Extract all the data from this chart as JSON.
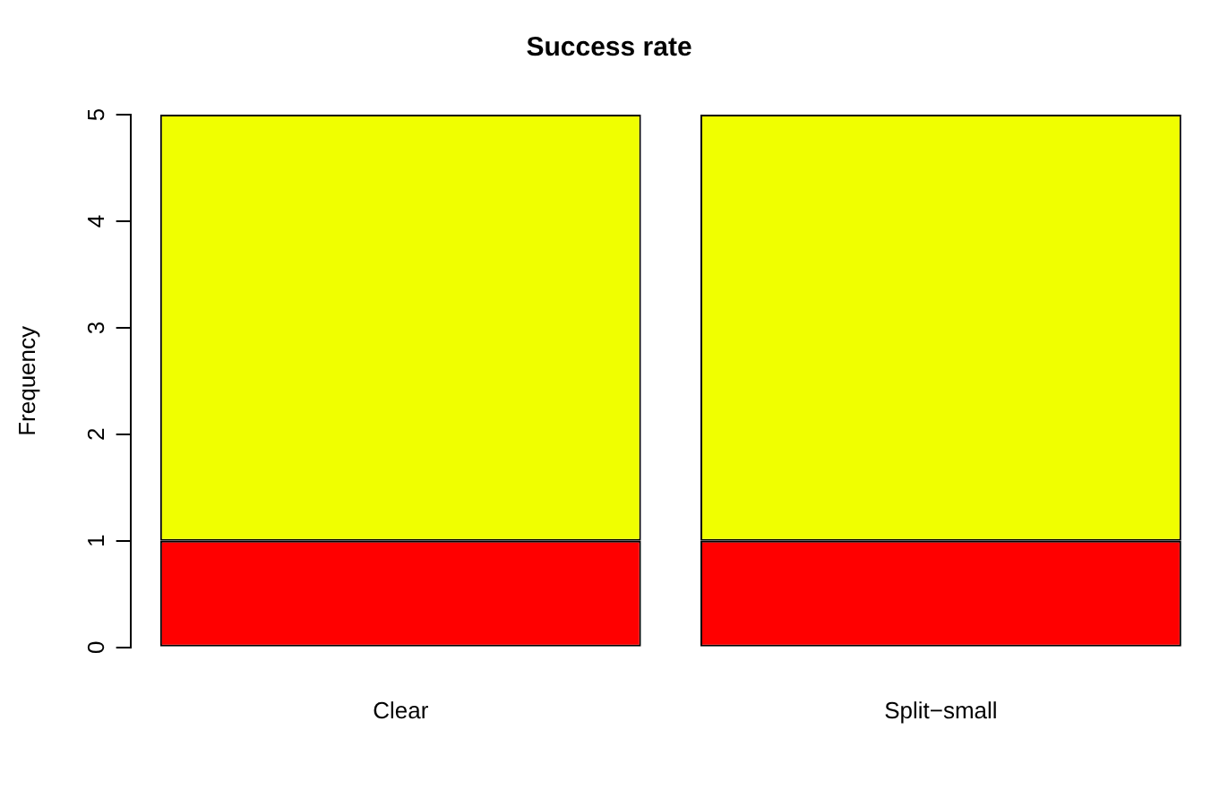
{
  "chart_data": {
    "type": "bar",
    "title": "Success rate",
    "ylabel": "Frequency",
    "categories": [
      "Clear",
      "Split−small"
    ],
    "stacked": true,
    "series": [
      {
        "color": "#ff0000",
        "values": [
          1,
          1
        ]
      },
      {
        "color": "#f0ff00",
        "values": [
          4,
          4
        ]
      }
    ],
    "ylim": [
      0,
      5
    ],
    "yticks": [
      0,
      1,
      2,
      3,
      4,
      5
    ],
    "grid": false,
    "legend": false
  }
}
